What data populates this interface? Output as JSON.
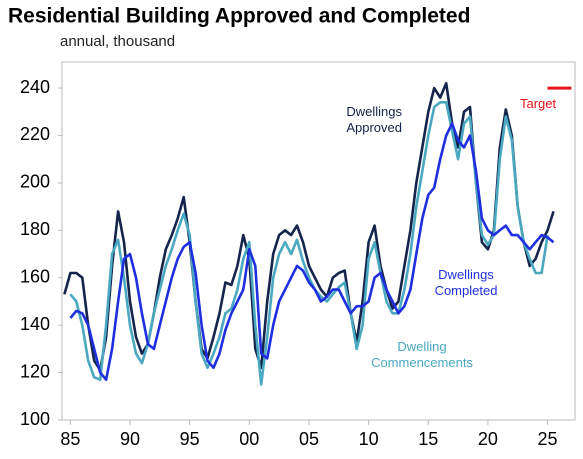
{
  "chart_data": {
    "type": "line",
    "title": "Residential Building Approved and Completed",
    "subtitle": "annual, thousand",
    "x": [
      1984.5,
      1985,
      1985.5,
      1986,
      1986.5,
      1987,
      1987.5,
      1988,
      1988.5,
      1989,
      1989.5,
      1990,
      1990.5,
      1991,
      1991.5,
      1992,
      1992.5,
      1993,
      1993.5,
      1994,
      1994.5,
      1995,
      1995.5,
      1996,
      1996.5,
      1997,
      1997.5,
      1998,
      1998.5,
      1999,
      1999.5,
      2000,
      2000.5,
      2001,
      2001.5,
      2002,
      2002.5,
      2003,
      2003.5,
      2004,
      2004.5,
      2005,
      2005.5,
      2006,
      2006.5,
      2007,
      2007.5,
      2008,
      2008.5,
      2009,
      2009.5,
      2010,
      2010.5,
      2011,
      2011.5,
      2012,
      2012.5,
      2013,
      2013.5,
      2014,
      2014.5,
      2015,
      2015.5,
      2016,
      2016.5,
      2017,
      2017.5,
      2018,
      2018.5,
      2019,
      2019.5,
      2020,
      2020.5,
      2021,
      2021.5,
      2022,
      2022.5,
      2023,
      2023.5,
      2024,
      2024.5,
      2025,
      2025.5
    ],
    "series": [
      {
        "name": "Dwellings Approved",
        "color": "#14244a",
        "values": [
          153,
          162,
          162,
          160,
          140,
          125,
          121,
          135,
          165,
          188,
          175,
          150,
          135,
          128,
          132,
          145,
          160,
          172,
          178,
          185,
          194,
          175,
          150,
          130,
          126,
          135,
          145,
          158,
          157,
          165,
          178,
          168,
          130,
          122,
          150,
          170,
          178,
          180,
          178,
          182,
          175,
          165,
          160,
          155,
          152,
          160,
          162,
          163,
          145,
          133,
          150,
          175,
          182,
          165,
          155,
          147,
          150,
          165,
          180,
          200,
          215,
          230,
          240,
          236,
          242,
          225,
          215,
          230,
          232,
          200,
          175,
          172,
          180,
          215,
          231,
          220,
          190,
          175,
          165,
          168,
          175,
          180,
          188
        ]
      },
      {
        "name": "Dwelling Commencements",
        "color": "#4aa8c0",
        "values": [
          null,
          153,
          150,
          140,
          125,
          118,
          117,
          140,
          170,
          176,
          160,
          140,
          128,
          124,
          132,
          145,
          155,
          165,
          172,
          180,
          187,
          178,
          150,
          128,
          122,
          128,
          135,
          145,
          147,
          155,
          168,
          175,
          140,
          115,
          135,
          160,
          170,
          175,
          170,
          176,
          167,
          160,
          155,
          152,
          150,
          153,
          156,
          158,
          145,
          130,
          140,
          168,
          175,
          162,
          150,
          145,
          145,
          155,
          170,
          190,
          205,
          220,
          232,
          234,
          234,
          222,
          210,
          225,
          228,
          200,
          178,
          174,
          178,
          210,
          228,
          218,
          190,
          175,
          168,
          162,
          162,
          178,
          null
        ]
      },
      {
        "name": "Dwellings Completed",
        "color": "#1f2fe0",
        "values": [
          null,
          143,
          146,
          145,
          140,
          130,
          120,
          117,
          130,
          150,
          168,
          170,
          160,
          145,
          132,
          130,
          140,
          150,
          160,
          168,
          173,
          175,
          162,
          140,
          125,
          122,
          128,
          138,
          145,
          150,
          155,
          172,
          165,
          128,
          126,
          140,
          150,
          155,
          160,
          165,
          163,
          158,
          155,
          150,
          152,
          155,
          155,
          150,
          145,
          148,
          148,
          150,
          160,
          162,
          155,
          150,
          145,
          148,
          155,
          170,
          185,
          195,
          198,
          210,
          220,
          225,
          218,
          215,
          220,
          205,
          185,
          180,
          178,
          180,
          182,
          178,
          178,
          175,
          172,
          175,
          178,
          177,
          175
        ]
      }
    ],
    "target": {
      "name": "Target",
      "color": "#e8141c",
      "value": 240,
      "x": [
        2025,
        2027
      ]
    },
    "xlim": [
      1984.3,
      2027.3
    ],
    "xticks": [
      {
        "value": 1985,
        "label": "85"
      },
      {
        "value": 1990,
        "label": "90"
      },
      {
        "value": 1995,
        "label": "95"
      },
      {
        "value": 2000,
        "label": "00"
      },
      {
        "value": 2005,
        "label": "05"
      },
      {
        "value": 2010,
        "label": "10"
      },
      {
        "value": 2015,
        "label": "15"
      },
      {
        "value": 2020,
        "label": "20"
      },
      {
        "value": 2025,
        "label": "25"
      }
    ],
    "ylim": [
      100,
      251
    ],
    "yticks": [
      100,
      120,
      140,
      160,
      180,
      200,
      220,
      240
    ],
    "grid": false
  }
}
